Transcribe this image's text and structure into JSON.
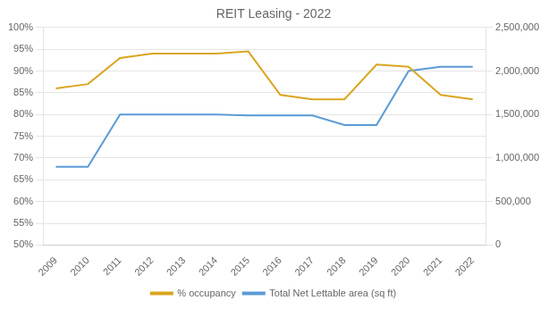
{
  "chart_data": {
    "type": "line",
    "title": "REIT Leasing - 2022",
    "x": [
      2009,
      2010,
      2011,
      2012,
      2013,
      2014,
      2015,
      2016,
      2017,
      2018,
      2019,
      2020,
      2021,
      2022
    ],
    "series": [
      {
        "name": "% occupancy",
        "color": "#DAA520",
        "values": [
          0.86,
          0.87,
          0.93,
          0.94,
          0.94,
          0.94,
          0.945,
          0.845,
          0.835,
          0.835,
          0.915,
          0.91,
          0.845,
          0.835
        ]
      },
      {
        "name": "Total Net Lettable area (sq ft)",
        "color": "#5B9BD5",
        "axis": "y2",
        "values": [
          900000,
          900000,
          1500000,
          1500000,
          1500000,
          1500000,
          1490000,
          1490000,
          1490000,
          1380000,
          1380000,
          2000000,
          2050000,
          2050000
        ]
      }
    ],
    "xlim": [
      2008.6,
      2022.4
    ],
    "xticks": [
      2009,
      2010,
      2011,
      2012,
      2013,
      2014,
      2015,
      2016,
      2017,
      2018,
      2019,
      2020,
      2021,
      2022
    ],
    "ylim": [
      0.5,
      1.0
    ],
    "yticks": [
      {
        "value": 0.5,
        "label": "50%"
      },
      {
        "value": 0.55,
        "label": "55%"
      },
      {
        "value": 0.6,
        "label": "60%"
      },
      {
        "value": 0.65,
        "label": "65%"
      },
      {
        "value": 0.7,
        "label": "70%"
      },
      {
        "value": 0.75,
        "label": "75%"
      },
      {
        "value": 0.8,
        "label": "80%"
      },
      {
        "value": 0.85,
        "label": "85%"
      },
      {
        "value": 0.9,
        "label": "90%"
      },
      {
        "value": 0.95,
        "label": "95%"
      },
      {
        "value": 1.0,
        "label": "100%"
      }
    ],
    "y2lim": [
      0,
      2500000
    ],
    "y2ticks": [
      0,
      {
        "value": 500000,
        "label": "500,000"
      },
      {
        "value": 1000000,
        "label": "1,000,000"
      },
      {
        "value": 1500000,
        "label": "1,500,000"
      },
      {
        "value": 2000000,
        "label": "2,000,000"
      },
      {
        "value": 2500000,
        "label": "2,500,000"
      }
    ],
    "grid": true,
    "legend": "bottom",
    "marker": "none"
  }
}
